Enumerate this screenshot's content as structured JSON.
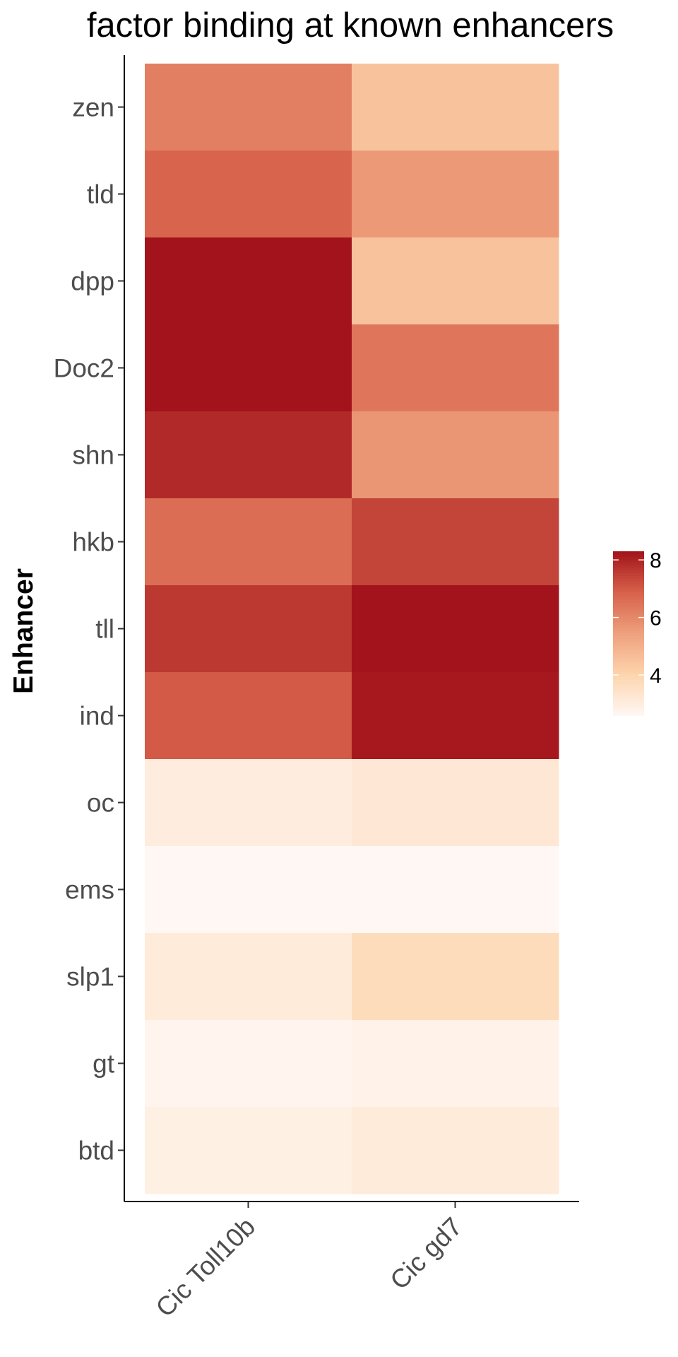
{
  "chart_data": {
    "type": "heatmap",
    "title": "factor binding at known enhancers",
    "xlabel": "",
    "ylabel": "Enhancer",
    "columns": [
      "Cic Toll10b",
      "Cic gd7"
    ],
    "rows": [
      "zen",
      "tld",
      "dpp",
      "Doc2",
      "shn",
      "hkb",
      "tll",
      "ind",
      "oc",
      "ems",
      "slp1",
      "gt",
      "btd"
    ],
    "values": [
      [
        6.2,
        4.5
      ],
      [
        6.8,
        5.6
      ],
      [
        8.3,
        4.5
      ],
      [
        8.3,
        6.4
      ],
      [
        7.9,
        5.7
      ],
      [
        6.6,
        7.4
      ],
      [
        7.6,
        8.3
      ],
      [
        7.0,
        8.2
      ],
      [
        3.0,
        3.2
      ],
      [
        2.6,
        2.6
      ],
      [
        3.1,
        3.7
      ],
      [
        2.7,
        2.8
      ],
      [
        2.9,
        3.1
      ]
    ],
    "legend": {
      "title": "",
      "ticks": [
        4,
        6,
        8
      ],
      "range": [
        2.6,
        8.3
      ],
      "position": "right"
    },
    "colorscale": [
      "#fff7f3",
      "#fdd4ac",
      "#eea07d",
      "#d7614a",
      "#a2131b"
    ],
    "grid": false
  }
}
